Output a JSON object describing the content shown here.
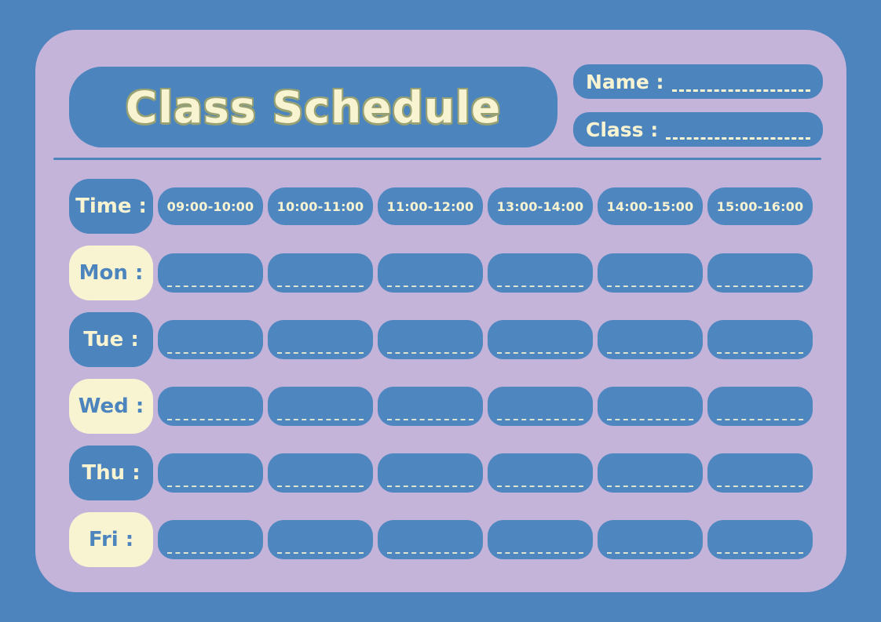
{
  "title": "Class Schedule",
  "header": {
    "name_label": "Name :",
    "class_label": "Class :"
  },
  "schedule": {
    "time_label": "Time :",
    "slots": [
      "09:00-10:00",
      "10:00-11:00",
      "11:00-12:00",
      "13:00-14:00",
      "14:00-15:00",
      "15:00-16:00"
    ],
    "days": [
      "Mon :",
      "Tue :",
      "Wed :",
      "Thu :",
      "Fri :"
    ]
  },
  "colors": {
    "background_blue": "#4d84bd",
    "panel_lavender": "#c4b4da",
    "box_blue": "#4c84be",
    "cream": "#f8f3d1",
    "title_outline": "#98a172"
  }
}
